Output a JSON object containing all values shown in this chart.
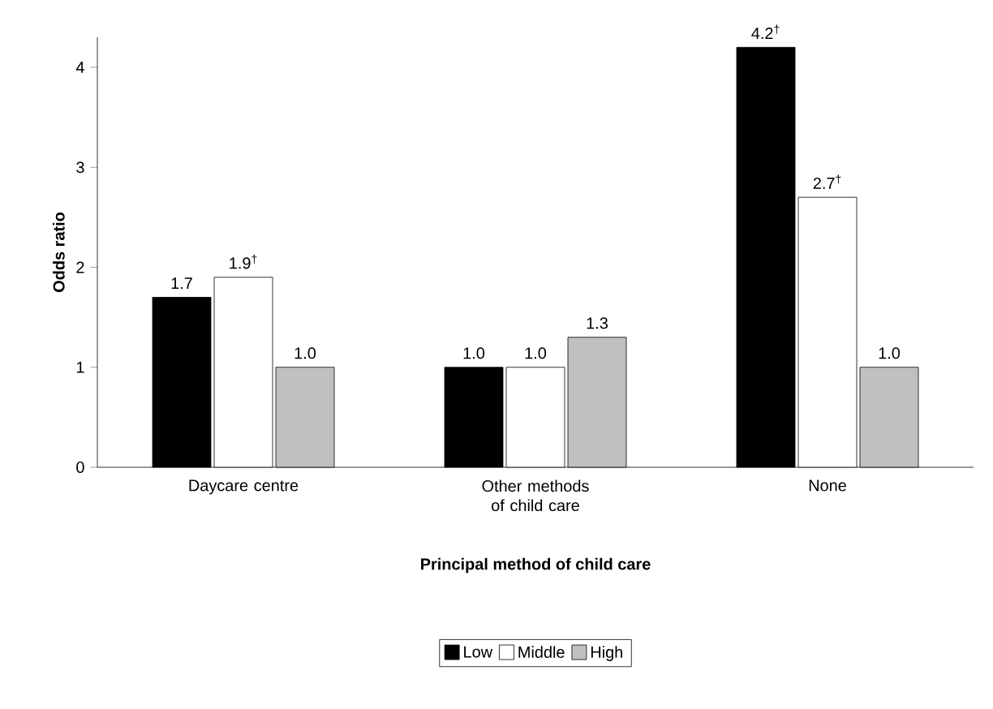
{
  "chart_data": {
    "type": "bar",
    "xlabel": "Principal method of child care",
    "ylabel": "Odds ratio",
    "categories": [
      "Daycare centre",
      "Other methods of child care",
      "None"
    ],
    "series": [
      {
        "name": "Low",
        "color": "#000000",
        "values": [
          1.7,
          1.0,
          4.2
        ],
        "value_labels": [
          "1.7",
          "1.0",
          "4.2$^{†}$"
        ]
      },
      {
        "name": "Middle",
        "color": "#ffffff",
        "values": [
          1.9,
          1.0,
          2.7
        ],
        "value_labels": [
          "1.9$^{†}$",
          "1.0",
          "2.7$^{†}$"
        ]
      },
      {
        "name": "High",
        "color": "#c0c0c0",
        "values": [
          1.0,
          1.3,
          1.0
        ],
        "value_labels": [
          "1.0",
          "1.3",
          "1.0"
        ]
      }
    ],
    "ylim": [
      0,
      4.3
    ],
    "yticks": [
      0,
      1,
      2,
      3,
      4
    ],
    "grid": false,
    "legend": "bottom"
  }
}
